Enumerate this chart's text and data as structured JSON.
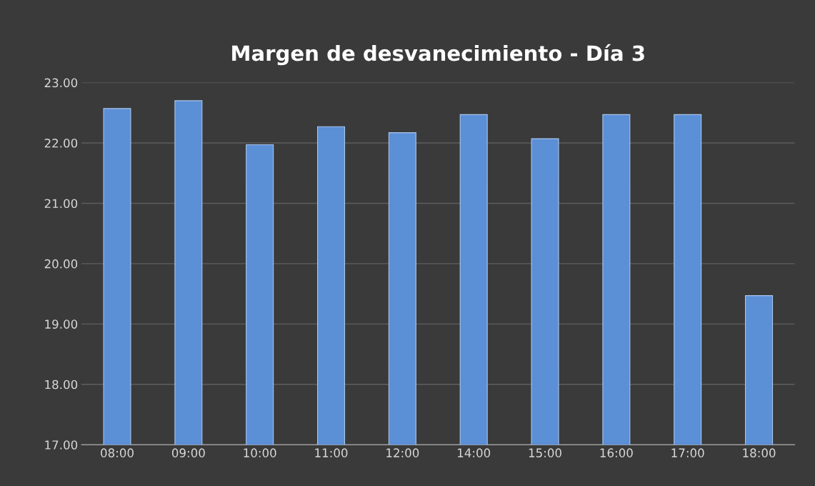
{
  "chart_data": {
    "type": "bar",
    "title": "Margen de desvanecimiento - Día 3",
    "categories": [
      "08:00",
      "09:00",
      "10:00",
      "11:00",
      "12:00",
      "14:00",
      "15:00",
      "16:00",
      "17:00",
      "18:00"
    ],
    "values": [
      22.57,
      22.7,
      21.97,
      22.27,
      22.17,
      22.47,
      22.07,
      22.47,
      22.47,
      19.47
    ],
    "color": "#5b8fd6",
    "ylim": [
      17,
      23
    ],
    "yticks": [
      {
        "value": 17,
        "label": "17.00"
      },
      {
        "value": 18,
        "label": "18.00"
      },
      {
        "value": 19,
        "label": "19.00"
      },
      {
        "value": 20,
        "label": "20.00"
      },
      {
        "value": 21,
        "label": "21.00"
      },
      {
        "value": 22,
        "label": "22.00"
      },
      {
        "value": 23,
        "label": "23.00"
      }
    ],
    "grid": "y",
    "legend": false
  }
}
